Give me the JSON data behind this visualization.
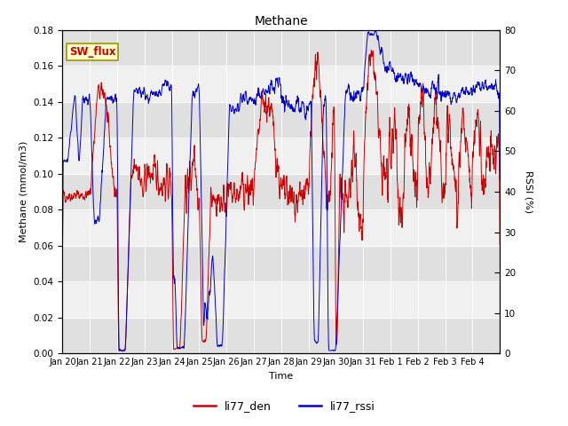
{
  "title": "Methane",
  "xlabel": "Time",
  "ylabel_left": "Methane (mmol/m3)",
  "ylabel_right": "RSSI (%)",
  "ylim_left": [
    0,
    0.18
  ],
  "ylim_right": [
    0,
    80
  ],
  "yticks_left": [
    0.0,
    0.02,
    0.04,
    0.06,
    0.08,
    0.1,
    0.12,
    0.14,
    0.16,
    0.18
  ],
  "yticks_right": [
    0,
    10,
    20,
    30,
    40,
    50,
    60,
    70,
    80
  ],
  "color_red": "#cc0000",
  "color_blue": "#0000cc",
  "bg_plot": "#f0f0f0",
  "bg_fig": "#ffffff",
  "stripe_dark": "#e0e0e0",
  "stripe_light": "#f0f0f0",
  "annotation_text": "SW_flux",
  "annotation_bg": "#ffffcc",
  "annotation_border": "#999900",
  "legend_labels": [
    "li77_den",
    "li77_rssi"
  ],
  "xtick_labels": [
    "Jan 20",
    "Jan 21",
    "Jan 22",
    "Jan 23",
    "Jan 24",
    "Jan 25",
    "Jan 26",
    "Jan 27",
    "Jan 28",
    "Jan 29",
    "Jan 30",
    "Jan 31",
    "Feb 1",
    "Feb 2",
    "Feb 3",
    "Feb 4"
  ],
  "n_points": 2000
}
